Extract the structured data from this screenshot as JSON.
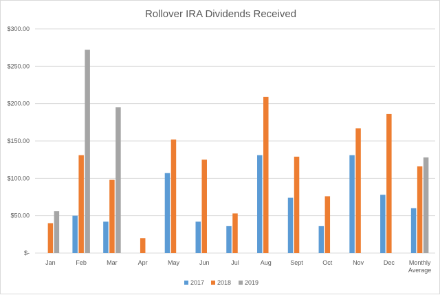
{
  "chart_data": {
    "type": "bar",
    "title": "Rollover IRA Dividends Received",
    "xlabel": "",
    "ylabel": "",
    "ylim": [
      0,
      300
    ],
    "yticks": [
      0,
      50,
      100,
      150,
      200,
      250,
      300
    ],
    "ytick_labels": [
      "$-",
      "$50.00",
      "$100.00",
      "$150.00",
      "$200.00",
      "$250.00",
      "$300.00"
    ],
    "grid": true,
    "legend_position": "bottom",
    "categories": [
      "Jan",
      "Feb",
      "Mar",
      "Apr",
      "May",
      "Jun",
      "Jul",
      "Aug",
      "Sept",
      "Oct",
      "Nov",
      "Dec",
      "Monthly Average"
    ],
    "category_lines": [
      [
        "Jan"
      ],
      [
        "Feb"
      ],
      [
        "Mar"
      ],
      [
        "Apr"
      ],
      [
        "May"
      ],
      [
        "Jun"
      ],
      [
        "Jul"
      ],
      [
        "Aug"
      ],
      [
        "Sept"
      ],
      [
        "Oct"
      ],
      [
        "Nov"
      ],
      [
        "Dec"
      ],
      [
        "Monthly",
        "Average"
      ]
    ],
    "series": [
      {
        "name": "2017",
        "color": "#5b9bd5",
        "values": [
          null,
          50,
          42,
          null,
          107,
          42,
          36,
          131,
          74,
          36,
          131,
          78,
          60
        ]
      },
      {
        "name": "2018",
        "color": "#ed7d31",
        "values": [
          40,
          131,
          98,
          20,
          152,
          125,
          53,
          209,
          129,
          76,
          167,
          186,
          116
        ]
      },
      {
        "name": "2019",
        "color": "#a5a5a5",
        "values": [
          56,
          272,
          195,
          null,
          null,
          null,
          null,
          null,
          null,
          null,
          null,
          null,
          128
        ]
      }
    ]
  }
}
